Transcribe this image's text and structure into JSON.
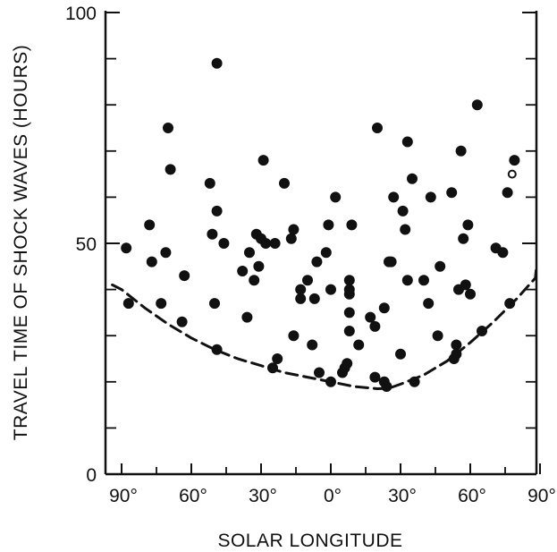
{
  "chart_data": {
    "type": "scatter",
    "title": "",
    "xlabel": "SOLAR LONGITUDE",
    "ylabel": "TRAVEL TIME OF SHOCK WAVES (HOURS)",
    "xlim": [
      -90,
      90
    ],
    "ylim": [
      0,
      100
    ],
    "x_ticks": [
      -90,
      -60,
      -30,
      0,
      30,
      60,
      90
    ],
    "x_tick_labels": [
      "90°",
      "60°",
      "30°",
      "0°",
      "30°",
      "60°",
      "90°"
    ],
    "y_major_ticks": [
      0,
      50,
      100
    ],
    "y_tick_labels": [
      "0",
      "50",
      "100"
    ],
    "y_minor_ticks": [
      10,
      20,
      30,
      40,
      60,
      70,
      80,
      90
    ],
    "x_minor_ticks": [
      -75,
      -45,
      -15,
      15,
      45,
      75
    ],
    "grid": false,
    "series": [
      {
        "marker": "filled-circle",
        "points": [
          [
            -88,
            49
          ],
          [
            -87,
            37
          ],
          [
            -78,
            54
          ],
          [
            -77,
            46
          ],
          [
            -73,
            37
          ],
          [
            -71,
            48
          ],
          [
            -70,
            75
          ],
          [
            -69,
            66
          ],
          [
            -64,
            33
          ],
          [
            -63,
            43
          ],
          [
            -52,
            63
          ],
          [
            -51,
            52
          ],
          [
            -50,
            37
          ],
          [
            -49,
            89
          ],
          [
            -49,
            57
          ],
          [
            -49,
            27
          ],
          [
            -46,
            50
          ],
          [
            -38,
            44
          ],
          [
            -36,
            34
          ],
          [
            -35,
            48
          ],
          [
            -33,
            42
          ],
          [
            -32,
            52
          ],
          [
            -31,
            45
          ],
          [
            -30,
            51
          ],
          [
            -29,
            68
          ],
          [
            -28,
            50
          ],
          [
            -25,
            23
          ],
          [
            -24,
            50
          ],
          [
            -23,
            25
          ],
          [
            -20,
            63
          ],
          [
            -17,
            51
          ],
          [
            -16,
            53
          ],
          [
            -16,
            30
          ],
          [
            -13,
            38
          ],
          [
            -13,
            40
          ],
          [
            -10,
            42
          ],
          [
            -8,
            28
          ],
          [
            -7,
            38
          ],
          [
            -6,
            46
          ],
          [
            -5,
            22
          ],
          [
            -2,
            48
          ],
          [
            -1,
            54
          ],
          [
            0,
            40
          ],
          [
            0,
            20
          ],
          [
            2,
            60
          ],
          [
            5,
            22
          ],
          [
            6,
            23
          ],
          [
            7,
            24
          ],
          [
            8,
            31
          ],
          [
            8,
            35
          ],
          [
            8,
            39
          ],
          [
            8,
            40
          ],
          [
            8,
            42
          ],
          [
            9,
            54
          ],
          [
            12,
            28
          ],
          [
            17,
            34
          ],
          [
            19,
            32
          ],
          [
            19,
            21
          ],
          [
            20,
            75
          ],
          [
            23,
            36
          ],
          [
            23,
            20
          ],
          [
            24,
            19
          ],
          [
            25,
            46
          ],
          [
            26,
            46
          ],
          [
            27,
            60
          ],
          [
            30,
            26
          ],
          [
            31,
            57
          ],
          [
            32,
            53
          ],
          [
            33,
            42
          ],
          [
            33,
            72
          ],
          [
            35,
            64
          ],
          [
            36,
            20
          ],
          [
            40,
            42
          ],
          [
            42,
            37
          ],
          [
            43,
            60
          ],
          [
            46,
            30
          ],
          [
            47,
            45
          ],
          [
            52,
            61
          ],
          [
            53,
            25
          ],
          [
            54,
            26
          ],
          [
            54,
            28
          ],
          [
            55,
            40
          ],
          [
            56,
            70
          ],
          [
            57,
            51
          ],
          [
            58,
            41
          ],
          [
            59,
            54
          ],
          [
            60,
            39
          ],
          [
            63,
            80
          ],
          [
            65,
            31
          ],
          [
            71,
            49
          ],
          [
            74,
            48
          ],
          [
            76,
            61
          ],
          [
            77,
            37
          ],
          [
            79,
            68
          ]
        ]
      },
      {
        "marker": "open-circle",
        "points": [
          [
            78,
            65
          ]
        ]
      }
    ],
    "boundary_curve": {
      "style": "dashed",
      "points": [
        [
          -94,
          41
        ],
        [
          -90,
          40
        ],
        [
          -80,
          36
        ],
        [
          -70,
          32.5
        ],
        [
          -60,
          29.5
        ],
        [
          -50,
          27
        ],
        [
          -40,
          25
        ],
        [
          -30,
          23.5
        ],
        [
          -20,
          22
        ],
        [
          -10,
          21
        ],
        [
          0,
          20
        ],
        [
          10,
          19
        ],
        [
          20,
          18.5
        ],
        [
          25,
          18.6
        ],
        [
          30,
          19.5
        ],
        [
          40,
          21.5
        ],
        [
          50,
          24.5
        ],
        [
          60,
          28.5
        ],
        [
          70,
          33
        ],
        [
          80,
          38
        ],
        [
          88,
          42.5
        ],
        [
          92,
          45
        ]
      ]
    }
  }
}
